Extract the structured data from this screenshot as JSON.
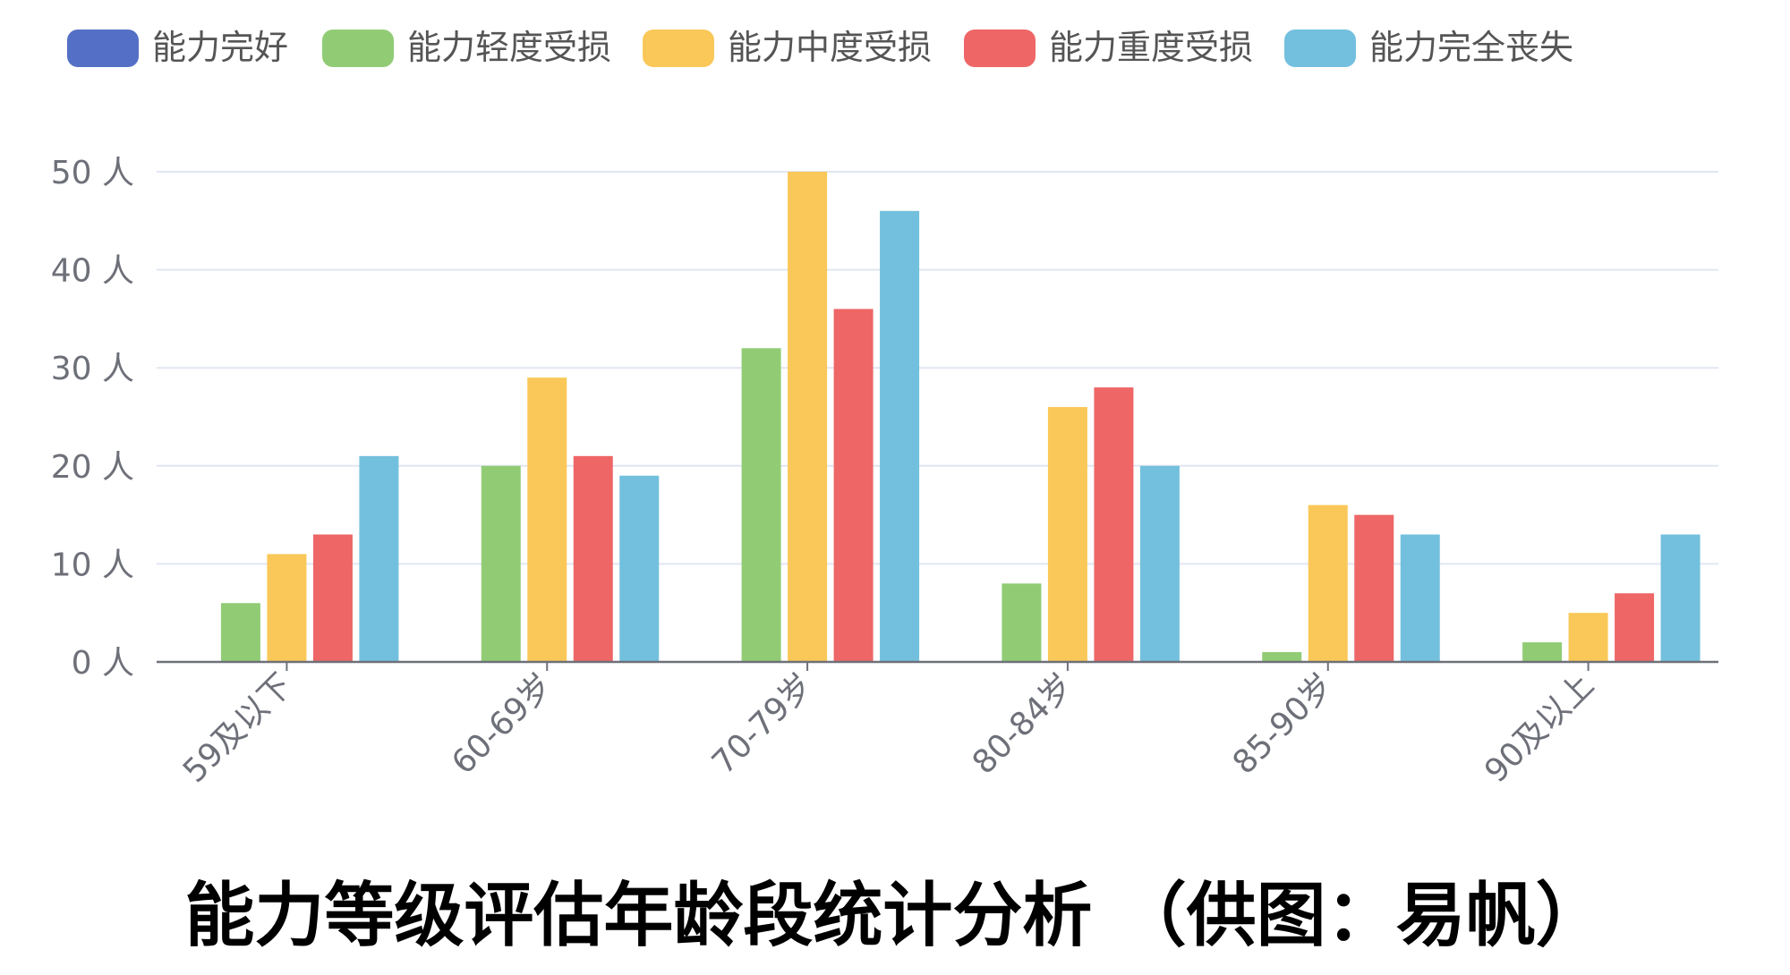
{
  "chart_data": {
    "type": "bar",
    "title": "能力等级评估年龄段统计分析 （供图：易帆）",
    "categories": [
      "59及以下",
      "60-69岁",
      "70-79岁",
      "80-84岁",
      "85-90岁",
      "90及以上"
    ],
    "y_tick_labels": [
      "0 人",
      "10 人",
      "20 人",
      "30 人",
      "40 人",
      "50 人"
    ],
    "ylim": [
      0,
      50
    ],
    "y_tick_step": 10,
    "grid": true,
    "legend_position": "top-left",
    "series": [
      {
        "name": "能力完好",
        "color": "#5470c6",
        "values": [
          0,
          0,
          0,
          0,
          0,
          0
        ]
      },
      {
        "name": "能力轻度受损",
        "color": "#91cc75",
        "values": [
          6,
          20,
          32,
          8,
          1,
          2
        ]
      },
      {
        "name": "能力中度受损",
        "color": "#fac858",
        "values": [
          11,
          29,
          50,
          26,
          16,
          5
        ]
      },
      {
        "name": "能力重度受损",
        "color": "#ee6666",
        "values": [
          13,
          21,
          36,
          28,
          15,
          7
        ]
      },
      {
        "name": "能力完全丧失",
        "color": "#73c0de",
        "values": [
          21,
          19,
          46,
          20,
          13,
          13
        ]
      }
    ]
  }
}
